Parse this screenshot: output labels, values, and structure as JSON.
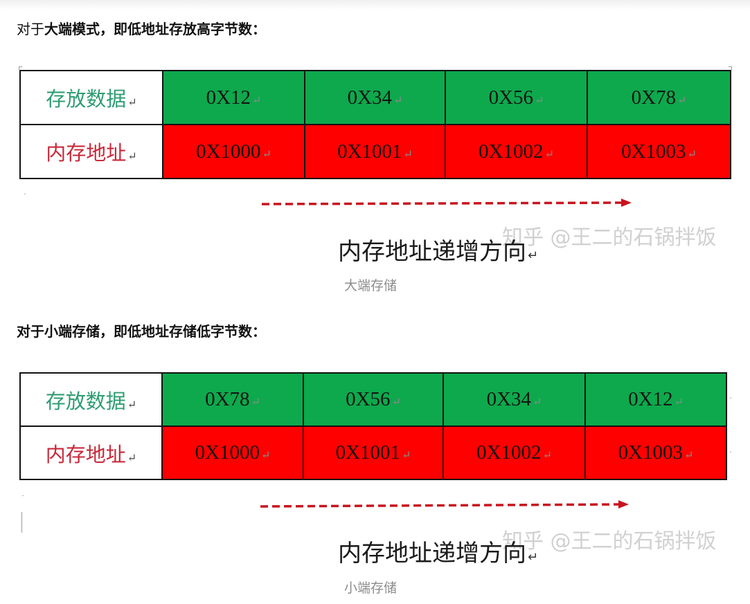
{
  "section1": {
    "heading_prefix": "对于",
    "heading_bold": "大端模式，即低地址存放高字节数",
    "heading_suffix": "：",
    "row_data_label": "存放数据",
    "row_addr_label": "内存地址",
    "data_cells": [
      "0X12",
      "0X34",
      "0X56",
      "0X78"
    ],
    "addr_cells": [
      "0X1000",
      "0X1001",
      "0X1002",
      "0X1003"
    ],
    "direction_text": "内存地址递增方向",
    "watermark": "知乎 @王二的石锅拌饭",
    "caption": "大端存储"
  },
  "section2": {
    "heading_bold": "对于小端存储，即低地址存储低字节数",
    "heading_suffix": "：",
    "row_data_label": "存放数据",
    "row_addr_label": "内存地址",
    "data_cells": [
      "0X78",
      "0X56",
      "0X34",
      "0X12"
    ],
    "addr_cells": [
      "0X1000",
      "0X1001",
      "0X1002",
      "0X1003"
    ],
    "direction_text": "内存地址递增方向",
    "watermark": "知乎 @王二的石锅拌饭",
    "caption": "小端存储"
  },
  "marks": {
    "return_glyph": "↵"
  },
  "colors": {
    "data_cell_bg": "#0ea94c",
    "addr_cell_bg": "#ff0000",
    "arrow": "#c8141e",
    "label_green": "#2e9c73",
    "label_red": "#c8283a"
  }
}
